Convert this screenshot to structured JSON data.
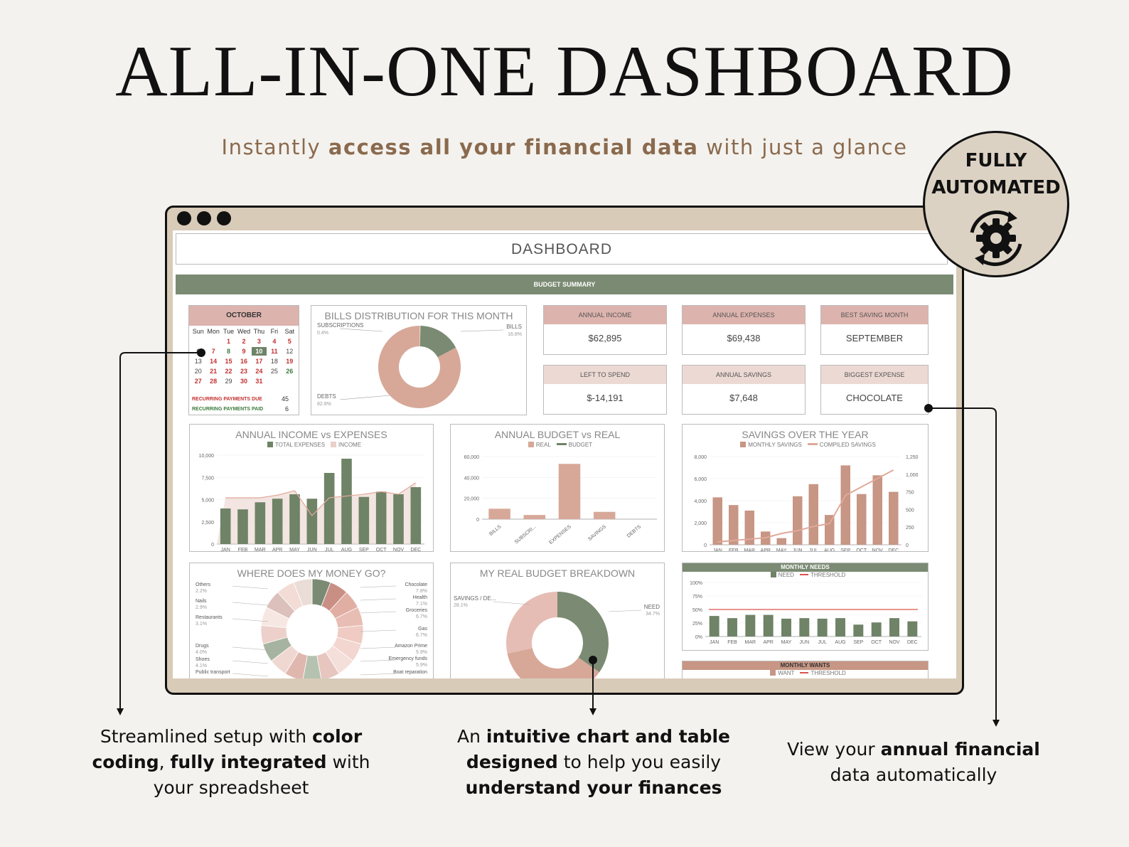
{
  "hero": {
    "title": "ALL-IN-ONE DASHBOARD",
    "subtitle_pre": "Instantly ",
    "subtitle_bold": "access all your financial data",
    "subtitle_post": " with just a glance"
  },
  "badge": {
    "line1": "FULLY",
    "line2": "AUTOMATED",
    "icon": "gear-sync-icon"
  },
  "dashboard": {
    "title": "DASHBOARD",
    "budget_summary": "BUDGET SUMMARY",
    "calendar": {
      "month": "OCTOBER",
      "days": [
        "Sun",
        "Mon",
        "Tue",
        "Wed",
        "Thu",
        "Fri",
        "Sat"
      ],
      "recurring_due_label": "RECURRING PAYMENTS DUE",
      "recurring_due_value": "45",
      "recurring_paid_label": "RECURRING PAYMENTS PAID",
      "recurring_paid_value": "6"
    },
    "stats": [
      {
        "label": "ANNUAL INCOME",
        "value": "$62,895"
      },
      {
        "label": "ANNUAL EXPENSES",
        "value": "$69,438"
      },
      {
        "label": "BEST SAVING MONTH",
        "value": "SEPTEMBER"
      },
      {
        "label": "LEFT TO SPEND",
        "value": "$-14,191"
      },
      {
        "label": "ANNUAL SAVINGS",
        "value": "$7,648"
      },
      {
        "label": "BIGGEST EXPENSE",
        "value": "CHOCOLATE"
      }
    ],
    "charts": {
      "bills_title": "BILLS DISTRIBUTION FOR THIS MONTH",
      "income_title": "ANNUAL INCOME vs EXPENSES",
      "income_legend_a": "TOTAL EXPENSES",
      "income_legend_b": "INCOME",
      "budget_title": "ANNUAL BUDGET vs REAL",
      "budget_legend_a": "REAL",
      "budget_legend_b": "BUDGET",
      "savings_title": "SAVINGS OVER THE YEAR",
      "savings_legend_a": "MONTHLY SAVINGS",
      "savings_legend_b": "COMPILED SAVINGS",
      "money_title": "WHERE DOES MY MONEY GO?",
      "breakdown_title": "MY REAL BUDGET BREAKDOWN",
      "needs_title": "MONTHLY NEEDS",
      "needs_legend_a": "NEED",
      "needs_legend_b": "THRESHOLD",
      "wants_title": "MONTHLY WANTS",
      "wants_legend_a": "WANT",
      "wants_legend_b": "THRESHOLD"
    }
  },
  "annotations": {
    "left_pre": "Streamlined setup with ",
    "left_b1": "color coding",
    "left_mid": ", ",
    "left_b2": "fully integrated",
    "left_post": " with your spreadsheet",
    "center_pre": "An ",
    "center_b1": "intuitive chart and table designed",
    "center_mid": " to help you easily ",
    "center_b2": "understand your finances",
    "right_pre": "View your ",
    "right_b1": "annual financial",
    "right_post": " data automatically"
  },
  "colors": {
    "green": "#7b8b73",
    "pink": "#d7a898",
    "light_pink": "#ead0c9",
    "brown_text": "#8a6a4e"
  },
  "chart_data": [
    {
      "type": "pie",
      "title": "BILLS DISTRIBUTION FOR THIS MONTH",
      "categories": [
        "SUBSCRIPTIONS",
        "BILLS",
        "DEBTS"
      ],
      "values": [
        0.4,
        16.8,
        82.8
      ],
      "value_labels": [
        "0.4%",
        "16.8%",
        "82.8%"
      ]
    },
    {
      "type": "bar",
      "title": "ANNUAL INCOME vs EXPENSES",
      "categories": [
        "JAN",
        "FEB",
        "MAR",
        "APR",
        "MAY",
        "JUN",
        "JUL",
        "AUG",
        "SEP",
        "OCT",
        "NOV",
        "DEC"
      ],
      "series": [
        {
          "name": "TOTAL EXPENSES",
          "values": [
            4000,
            3900,
            4700,
            5100,
            5600,
            5100,
            8000,
            9600,
            5300,
            5900,
            5600,
            6400
          ]
        },
        {
          "name": "INCOME",
          "values": [
            5200,
            5200,
            5200,
            5500,
            6000,
            3200,
            5200,
            5400,
            5600,
            5900,
            5600,
            6900
          ]
        }
      ],
      "yticks": [
        "0",
        "2,500",
        "5,000",
        "7,500",
        "10,000"
      ],
      "ylim": [
        0,
        10000
      ]
    },
    {
      "type": "bar",
      "title": "ANNUAL BUDGET vs REAL",
      "categories": [
        "BILLS",
        "SUBSCRI...",
        "EXPENSES",
        "SAVINGS",
        "DEBTS"
      ],
      "series": [
        {
          "name": "REAL",
          "values": [
            10000,
            4000,
            53000,
            7000,
            0
          ]
        }
      ],
      "yticks": [
        "0",
        "20,000",
        "40,000",
        "60,000"
      ],
      "ylim": [
        0,
        60000
      ]
    },
    {
      "type": "bar",
      "title": "SAVINGS OVER THE YEAR",
      "categories": [
        "JAN",
        "FEB",
        "MAR",
        "APR",
        "MAY",
        "JUN",
        "JUL",
        "AUG",
        "SEP",
        "OCT",
        "NOV",
        "DEC"
      ],
      "series": [
        {
          "name": "MONTHLY SAVINGS",
          "values": [
            4300,
            3600,
            3100,
            1200,
            600,
            4400,
            5500,
            2700,
            7200,
            4600,
            6300,
            4800
          ]
        },
        {
          "name": "COMPILED SAVINGS",
          "values": [
            40,
            60,
            80,
            100,
            160,
            200,
            260,
            300,
            700,
            820,
            940,
            1060
          ]
        }
      ],
      "yticks": [
        "0",
        "2,000",
        "4,000",
        "6,000",
        "8,000"
      ],
      "y2ticks": [
        "0",
        "250",
        "500",
        "750",
        "1,000",
        "1,250"
      ],
      "ylim": [
        0,
        8000
      ]
    },
    {
      "type": "pie",
      "title": "WHERE DOES MY MONEY GO?",
      "categories": [
        "Others",
        "Nails",
        "Restaurants",
        "Drugs",
        "Shoes",
        "Public transport",
        "Chocolate",
        "Health",
        "Groceries",
        "Gas",
        "Amazon Prime",
        "Emergency funds",
        "Boat reparation"
      ],
      "value_labels": [
        "2.2%",
        "2.9%",
        "3.1%",
        "4.0%",
        "4.1%",
        "",
        "7.8%",
        "7.1%",
        "6.7%",
        "6.7%",
        "5.9%",
        "5.9%",
        ""
      ]
    },
    {
      "type": "pie",
      "title": "MY REAL BUDGET BREAKDOWN",
      "categories": [
        "SAVINGS / DE...",
        "NEED"
      ],
      "value_labels": [
        "28.1%",
        "34.7%"
      ]
    },
    {
      "type": "bar",
      "title": "MONTHLY NEEDS",
      "categories": [
        "JAN",
        "FEB",
        "MAR",
        "APR",
        "MAY",
        "JUN",
        "JUL",
        "AUG",
        "SEP",
        "OCT",
        "NOV",
        "DEC"
      ],
      "series": [
        {
          "name": "NEED",
          "values": [
            38,
            34,
            40,
            40,
            33,
            34,
            33,
            34,
            22,
            26,
            34,
            28
          ]
        },
        {
          "name": "THRESHOLD",
          "values": [
            50,
            50,
            50,
            50,
            50,
            50,
            50,
            50,
            50,
            50,
            50,
            50
          ]
        }
      ],
      "yticks": [
        "0%",
        "25%",
        "50%",
        "75%",
        "100%"
      ],
      "ylim": [
        0,
        100
      ]
    }
  ]
}
